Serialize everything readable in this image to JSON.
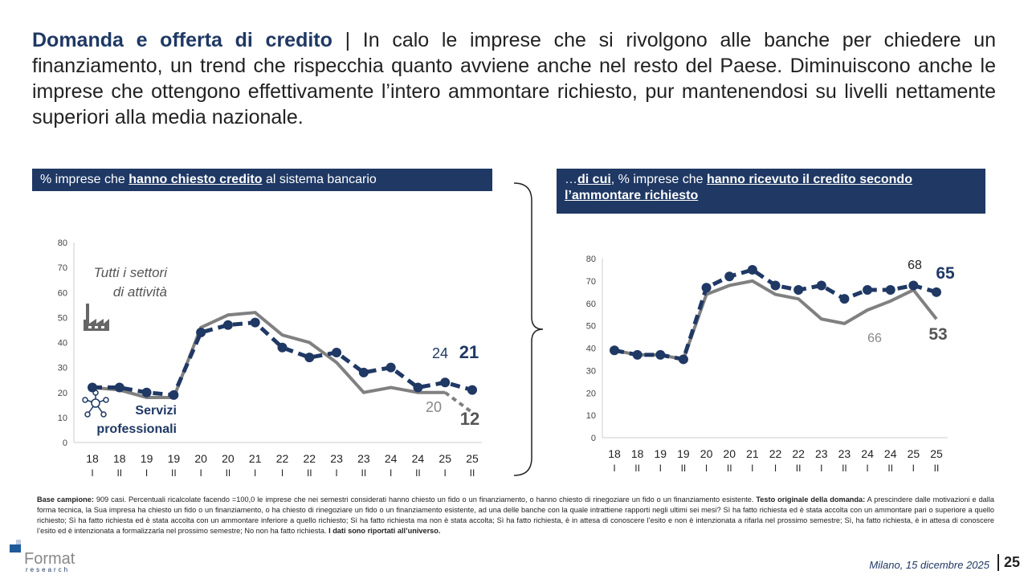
{
  "title": {
    "bold": "Domanda e offerta di credito",
    "sep": " | ",
    "text": "In calo le imprese che si rivolgono alle banche per chiedere un finanziamento, un trend che rispecchia quanto avviene anche nel resto del Paese. Diminuiscono anche le imprese che ottengono effettivamente l’intero ammontare richiesto, pur mantenendosi su livelli nettamente superiori alla media nazionale."
  },
  "left_header": {
    "pre": "% imprese che ",
    "u": "hanno chiesto credito",
    "post": " al sistema bancario"
  },
  "right_header": {
    "pre": "…",
    "u1": "di cui",
    "mid": ", % imprese che ",
    "u2": "hanno ricevuto il credito secondo l’ammontare richiesto"
  },
  "chart_data": [
    {
      "type": "line",
      "ylim": [
        0,
        80
      ],
      "yticks": [
        0,
        10,
        20,
        30,
        40,
        50,
        60,
        70,
        80
      ],
      "categories": [
        "18 I",
        "18 II",
        "19 I",
        "19 II",
        "20 I",
        "20 II",
        "21 I",
        "22 I",
        "22 II",
        "23 I",
        "23 II",
        "24 I",
        "24 II",
        "25 I",
        "25 II"
      ],
      "series": [
        {
          "name": "Servizi professionali",
          "color": "#1f3864",
          "style": "dashed-markers",
          "values": [
            22,
            22,
            20,
            19,
            44,
            47,
            48,
            38,
            34,
            36,
            28,
            30,
            22,
            24,
            21
          ]
        },
        {
          "name": "Tutti i settori di attività",
          "color": "#808080",
          "style": "solid",
          "values": [
            22,
            21,
            18,
            18,
            46,
            51,
            52,
            43,
            40,
            32,
            20,
            22,
            20,
            20,
            12
          ]
        }
      ],
      "annotations": [
        "24",
        "21",
        "20",
        "12"
      ]
    },
    {
      "type": "line",
      "ylim": [
        0,
        80
      ],
      "yticks": [
        0,
        10,
        20,
        30,
        40,
        50,
        60,
        70,
        80
      ],
      "categories": [
        "18 I",
        "18 II",
        "19 I",
        "19 II",
        "20 I",
        "20 II",
        "21 I",
        "22 I",
        "22 II",
        "23 I",
        "23 II",
        "24 I",
        "24 II",
        "25 I",
        "25 II"
      ],
      "series": [
        {
          "color": "#1f3864",
          "style": "dashed-markers",
          "values": [
            39,
            37,
            37,
            35,
            67,
            72,
            75,
            68,
            66,
            68,
            62,
            66,
            66,
            68,
            65
          ]
        },
        {
          "color": "#808080",
          "style": "solid",
          "values": [
            39,
            37,
            37,
            35,
            64,
            68,
            70,
            64,
            62,
            53,
            51,
            57,
            61,
            66,
            53
          ]
        }
      ],
      "annotations": [
        "68",
        "65",
        "66",
        "53"
      ]
    }
  ],
  "legend": {
    "all": "Tutti i settori di attività",
    "all1": "Tutti i settori",
    "all2": "di attività",
    "serv1": "Servizi",
    "serv2": "professionali"
  },
  "footnote": {
    "b1": "Base campione:",
    "t1": " 909 casi. Percentuali ricalcolate facendo =100,0 le imprese che nei semestri considerati hanno chiesto un fido o un finanziamento, o hanno chiesto di rinegoziare un fido o un finanziamento esistente. ",
    "b2": "Testo originale della domanda:",
    "t2": " A prescindere dalle motivazioni e dalla  forma tecnica, la Sua impresa ha chiesto un fido  o un finanziamento, o ha chiesto di rinegoziare un fido o un finanziamento esistente, ad una delle banche con la quale intrattiene rapporti negli ultimi sei mesi?  Sì ha fatto richiesta ed è stata accolta con un ammontare pari o superiore a quello richiesto; Sì ha fatto richiesta ed è stata accolta con un ammontare inferiore a quello richiesto; Sì ha fatto richiesta ma non è stata accolta; Sì ha fatto richiesta, è in attesa di conoscere l’esito e non è intenzionata a rifarla nel prossimo semestre; Sì, ha fatto richiesta, è in attesa di conoscere l’esito ed è intenzionata a formalizzarla nel prossimo semestre; No non ha fatto richiesta. ",
    "b3": "I dati sono riportati all’universo."
  },
  "logo": {
    "name": "Format",
    "sub": "research"
  },
  "date": "Milano, 15 dicembre 2025",
  "page": "25"
}
